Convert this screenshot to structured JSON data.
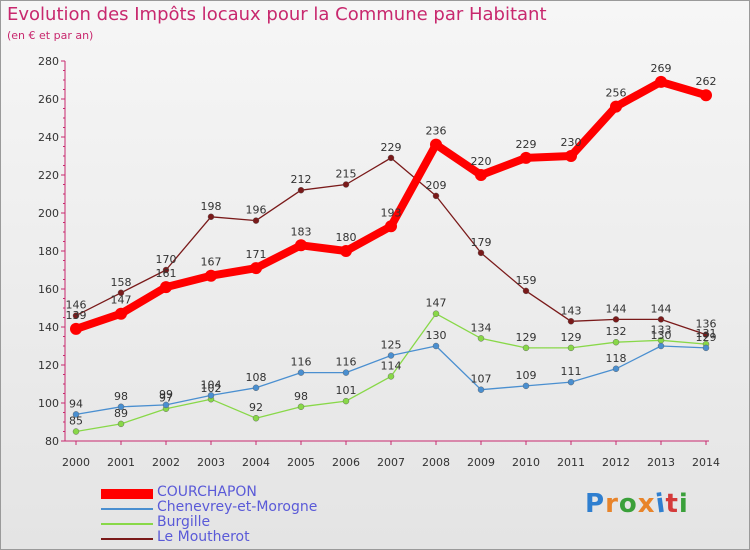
{
  "title": "Evolution des Impôts locaux pour la Commune par Habitant",
  "subtitle": "(en € et par an)",
  "brand": {
    "text": "Proxiti",
    "letter_colors": [
      "#2f7fd0",
      "#e8842a",
      "#3aa03a",
      "#e8842a",
      "#2f7fd0",
      "#d43a3a",
      "#3aa03a"
    ]
  },
  "chart_data": {
    "type": "line",
    "title": "Evolution des Impôts locaux pour la Commune par Habitant",
    "subtitle": "(en € et par an)",
    "xlabel": "",
    "ylabel": "",
    "x": [
      "2000",
      "2001",
      "2002",
      "2003",
      "2004",
      "2005",
      "2006",
      "2007",
      "2008",
      "2009",
      "2010",
      "2011",
      "2012",
      "2013",
      "2014"
    ],
    "yticks": [
      80,
      100,
      120,
      140,
      160,
      180,
      200,
      220,
      240,
      260,
      280
    ],
    "ylim": [
      80,
      280
    ],
    "grid": false,
    "legend_position": "bottom",
    "series": [
      {
        "name": "COURCHAPON",
        "color": "#ff0000",
        "values": [
          139,
          147,
          161,
          167,
          171,
          183,
          180,
          193,
          236,
          220,
          229,
          230,
          256,
          269,
          262
        ],
        "labels": [
          "139",
          "147",
          "161",
          "167",
          "171",
          "183",
          "180",
          "193",
          "236",
          "220",
          "229",
          "230",
          "256",
          "269",
          "262"
        ]
      },
      {
        "name": "Chenevrey-et-Morogne",
        "color": "#4a8fd0",
        "values": [
          94,
          98,
          99,
          104,
          108,
          116,
          116,
          125,
          130,
          107,
          109,
          111,
          118,
          130,
          129
        ],
        "labels": [
          "94",
          "98",
          "99",
          "104",
          "108",
          "116",
          "116",
          "125",
          "130",
          "107",
          "109",
          "111",
          "118",
          "130",
          "129"
        ]
      },
      {
        "name": "Burgille",
        "color": "#88d848",
        "values": [
          85,
          89,
          97,
          102,
          92,
          98,
          101,
          114,
          147,
          134,
          129,
          129,
          132,
          133,
          131
        ],
        "labels": [
          "85",
          "89",
          "97",
          "102",
          "92",
          "98",
          "101",
          "114",
          "147",
          "134",
          "129",
          "129",
          "132",
          "133",
          "131"
        ]
      },
      {
        "name": "Le Moutherot",
        "color": "#7a1a1a",
        "values": [
          146,
          158,
          170,
          198,
          196,
          212,
          215,
          229,
          209,
          179,
          159,
          143,
          144,
          144,
          136
        ],
        "labels": [
          "146",
          "158",
          "170",
          "198",
          "196",
          "212",
          "215",
          "229",
          "209",
          "179",
          "159",
          "143",
          "144",
          "144",
          "136"
        ]
      }
    ]
  }
}
